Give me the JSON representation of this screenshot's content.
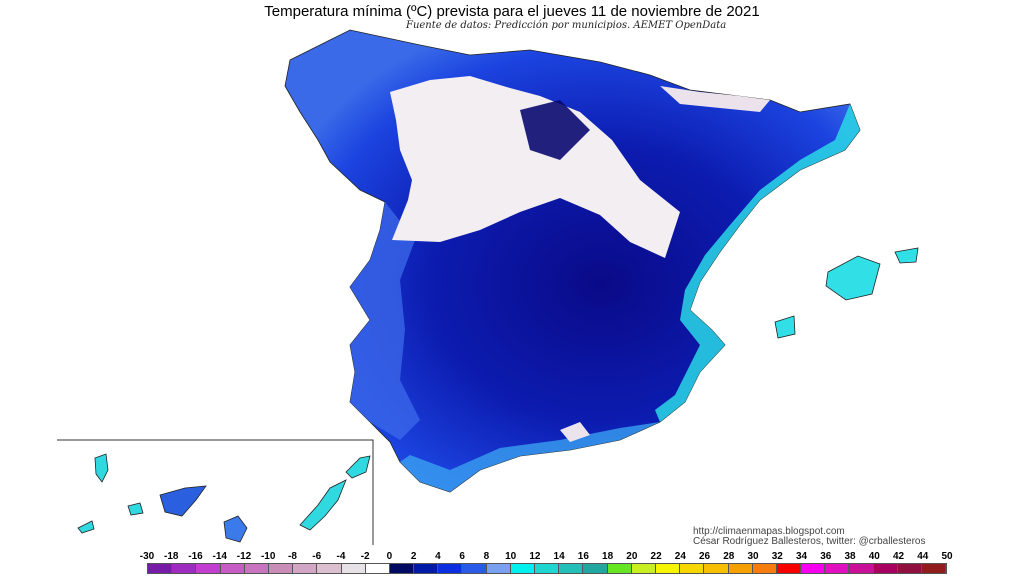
{
  "header": {
    "title": "Temperatura mínima (ºC) prevista para el jueves 11 de noviembre de 2021",
    "subtitle": "Fuente de datos: Predicción por municipios. AEMET OpenData"
  },
  "credits": {
    "url": "http://climaenmapas.blogspot.com",
    "author": "César Rodríguez Ballesteros, twitter: @crballesteros"
  },
  "map": {
    "region": "Spain",
    "colors": {
      "deep": "#0a0a7a",
      "navy": "#0814a8",
      "blue": "#1a3ee0",
      "mid": "#3060e8",
      "light": "#6f9cf0",
      "cyan": "#33e6e6",
      "snow": "#f2eef2",
      "ocean": "#ffffff"
    }
  },
  "legend": {
    "labels": [
      "-30",
      "-18",
      "-16",
      "-14",
      "-12",
      "-10",
      "-8",
      "-6",
      "-4",
      "-2",
      "0",
      "2",
      "4",
      "6",
      "8",
      "10",
      "12",
      "14",
      "16",
      "18",
      "20",
      "22",
      "24",
      "26",
      "28",
      "30",
      "32",
      "34",
      "36",
      "38",
      "40",
      "42",
      "44",
      "50"
    ],
    "colors": [
      "#761ca6",
      "#9e2cc0",
      "#c23ed0",
      "#c75cc6",
      "#c874bf",
      "#c98db8",
      "#d2a7c6",
      "#dcc0d0",
      "#e6e2e6",
      "#ffffff",
      "#000a60",
      "#001aa8",
      "#0a2ee0",
      "#2a5ae8",
      "#7aa0f0",
      "#00f0f0",
      "#20d6d0",
      "#22c0b8",
      "#20a8a0",
      "#66e620",
      "#c8f020",
      "#f6f600",
      "#f6d800",
      "#f6c000",
      "#f6a000",
      "#f67c10",
      "#f60000",
      "#f600f0",
      "#e010c0",
      "#c81098",
      "#a80060",
      "#901040",
      "#901c1c"
    ]
  }
}
